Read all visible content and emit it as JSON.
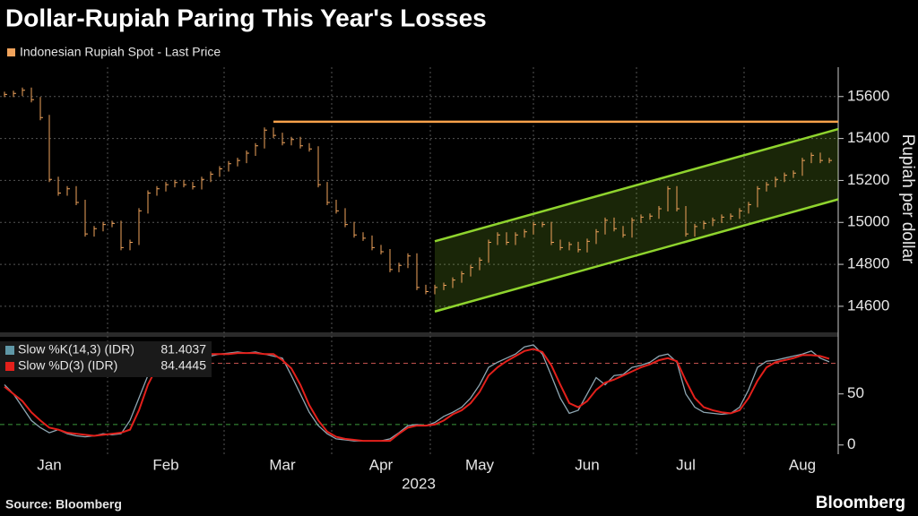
{
  "chart_data": [
    {
      "type": "ohlc",
      "title": "Dollar-Rupiah Paring This Year's Losses",
      "ylabel": "Rupiah per dollar",
      "categories": [
        null,
        null,
        null,
        null,
        null,
        "Jan",
        null,
        null,
        null,
        null,
        null,
        null,
        null,
        null,
        null,
        null,
        null,
        null,
        "Feb",
        null,
        null,
        null,
        null,
        null,
        null,
        null,
        null,
        null,
        null,
        null,
        null,
        "Mar",
        null,
        null,
        null,
        null,
        null,
        null,
        null,
        null,
        null,
        null,
        "Apr",
        null,
        null,
        null,
        null,
        null,
        null,
        null,
        null,
        null,
        null,
        "May",
        null,
        null,
        null,
        null,
        null,
        null,
        null,
        null,
        null,
        null,
        null,
        "Jun",
        null,
        null,
        null,
        null,
        null,
        null,
        null,
        null,
        null,
        null,
        "Jul",
        null,
        null,
        null,
        null,
        null,
        null,
        null,
        null,
        null,
        null,
        null,
        null,
        "Aug",
        null,
        null,
        null
      ],
      "series": [
        {
          "name": "Indonesian Rupiah Spot - Last Price",
          "color": "#f0a35c",
          "values": [
            15610,
            15615,
            15630,
            15585,
            15500,
            15205,
            15140,
            15160,
            15095,
            14945,
            14970,
            14990,
            14995,
            14880,
            14905,
            15055,
            15140,
            15160,
            15180,
            15190,
            15180,
            15170,
            15205,
            15230,
            15255,
            15280,
            15295,
            15330,
            15365,
            15440,
            15415,
            15380,
            15395,
            15365,
            15350,
            15180,
            15095,
            15055,
            14990,
            14940,
            14925,
            14880,
            14860,
            14775,
            14795,
            14840,
            14690,
            14670,
            14690,
            14700,
            14725,
            14755,
            14785,
            14820,
            14905,
            14940,
            14905,
            14940,
            14955,
            14990,
            14990,
            14905,
            14880,
            14895,
            14870,
            14910,
            14955,
            15010,
            14970,
            14940,
            15010,
            15025,
            15030,
            15065,
            15160,
            15065,
            14945,
            14980,
            14995,
            15010,
            15025,
            15030,
            15055,
            15085,
            15160,
            15180,
            15205,
            15225,
            15235,
            15295,
            15320,
            15295,
            15295
          ]
        }
      ],
      "ylim": [
        14480,
        15740
      ],
      "yticks": [
        14600,
        14800,
        15000,
        15200,
        15400,
        15600
      ],
      "grid": true,
      "resistance": {
        "value": 15480,
        "start": 30,
        "color": "#f7a14a"
      },
      "channel": {
        "start": 48,
        "upper": [
          14910,
          15445
        ],
        "lower": [
          14575,
          15110
        ],
        "color": "#8fd42e"
      }
    },
    {
      "type": "line",
      "xlabel": "2023",
      "series": [
        {
          "name": "Slow %K(14,3) (IDR)",
          "color": "#8ea6b2",
          "swatch": "#5f97a6",
          "values": [
            59,
            50,
            37,
            24,
            17,
            12,
            15,
            11,
            9,
            8,
            9,
            11,
            10,
            11,
            24,
            46,
            68,
            81,
            85,
            89,
            91,
            92,
            89,
            87,
            89,
            90,
            91,
            90,
            91,
            89,
            87,
            85,
            68,
            50,
            32,
            19,
            11,
            6,
            5,
            4,
            4,
            4,
            4,
            6,
            12,
            19,
            20,
            19,
            22,
            28,
            32,
            37,
            46,
            59,
            76,
            81,
            85,
            89,
            96,
            98,
            89,
            68,
            46,
            31,
            34,
            50,
            66,
            59,
            68,
            69,
            76,
            78,
            81,
            87,
            89,
            81,
            50,
            37,
            32,
            31,
            30,
            31,
            37,
            54,
            76,
            82,
            83,
            85,
            87,
            89,
            92,
            85,
            81.4037
          ]
        },
        {
          "name": "Slow %D(3) (IDR)",
          "color": "#e3201b",
          "swatch": "#e3201b",
          "values": [
            57,
            50,
            43,
            32,
            24,
            17,
            15,
            12,
            11,
            10,
            9,
            10,
            11,
            12,
            15,
            34,
            59,
            76,
            85,
            89,
            91,
            91,
            90,
            89,
            89,
            89,
            90,
            90,
            90,
            89,
            89,
            83,
            75,
            59,
            39,
            24,
            13,
            8,
            6,
            5,
            4,
            4,
            4,
            4,
            11,
            17,
            19,
            19,
            20,
            24,
            30,
            34,
            41,
            52,
            68,
            76,
            82,
            87,
            92,
            94,
            91,
            78,
            59,
            41,
            37,
            43,
            54,
            61,
            64,
            68,
            72,
            76,
            79,
            83,
            85,
            82,
            63,
            46,
            37,
            34,
            32,
            31,
            34,
            46,
            63,
            76,
            81,
            83,
            85,
            88,
            88,
            87,
            84.4445
          ]
        }
      ],
      "ylim": [
        -9,
        105
      ],
      "yticks": [
        0,
        50
      ],
      "ref_lines": [
        {
          "value": 80,
          "color": "#c0504d"
        },
        {
          "value": 20,
          "color": "#3c9a3c"
        }
      ]
    }
  ],
  "footer": {
    "source": "Source: Bloomberg",
    "logo": "Bloomberg"
  }
}
